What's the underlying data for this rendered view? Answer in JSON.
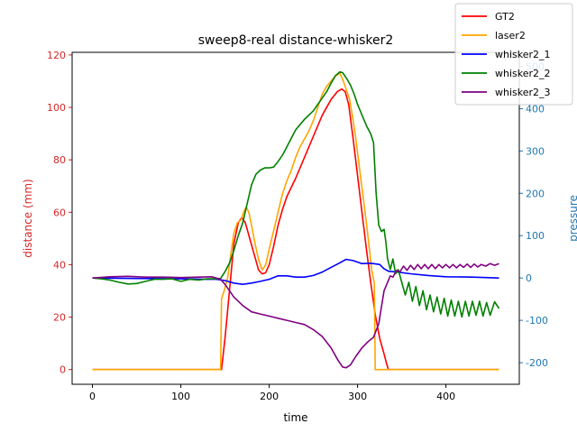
{
  "chart_data": {
    "type": "line",
    "title": "sweep8-real distance-whisker2",
    "xlabel": "time",
    "ylabel_left": "distance (mm)",
    "ylabel_right": "pressure",
    "xlim": [
      -23,
      483
    ],
    "ylim_left": [
      -5.6,
      121.0
    ],
    "ylim_right": [
      -251,
      533
    ],
    "xticks": [
      0,
      100,
      200,
      300,
      400
    ],
    "yticks_left": [
      0,
      20,
      40,
      60,
      80,
      100,
      120
    ],
    "yticks_right": [
      -200,
      -100,
      0,
      100,
      200,
      300,
      400,
      500
    ],
    "colors": {
      "left_axis": "#d62728",
      "right_axis": "#1f77b4"
    },
    "legend_position": "top-right",
    "series": [
      {
        "name": "GT2",
        "axis": "left",
        "color": "#ff0000",
        "points": [
          [
            0,
            0
          ],
          [
            146,
            0
          ],
          [
            150,
            12
          ],
          [
            155,
            30
          ],
          [
            160,
            48
          ],
          [
            165,
            56
          ],
          [
            169,
            58
          ],
          [
            173,
            56
          ],
          [
            178,
            50
          ],
          [
            183,
            44
          ],
          [
            188,
            38
          ],
          [
            192,
            36.5
          ],
          [
            196,
            37
          ],
          [
            200,
            40
          ],
          [
            205,
            47
          ],
          [
            210,
            55
          ],
          [
            215,
            61
          ],
          [
            220,
            66
          ],
          [
            230,
            73
          ],
          [
            240,
            81
          ],
          [
            250,
            89
          ],
          [
            260,
            97
          ],
          [
            270,
            103
          ],
          [
            277,
            106
          ],
          [
            282,
            107
          ],
          [
            286,
            106
          ],
          [
            290,
            101
          ],
          [
            295,
            88
          ],
          [
            300,
            74
          ],
          [
            305,
            60
          ],
          [
            310,
            46
          ],
          [
            315,
            33
          ],
          [
            320,
            21
          ],
          [
            325,
            12
          ],
          [
            330,
            6
          ],
          [
            333,
            2
          ],
          [
            335,
            0
          ],
          [
            460,
            0
          ]
        ]
      },
      {
        "name": "laser2",
        "axis": "left",
        "color": "#ffa500",
        "points": [
          [
            0,
            0
          ],
          [
            145,
            0
          ],
          [
            146,
            27
          ],
          [
            149,
            30
          ],
          [
            153,
            35
          ],
          [
            157,
            45
          ],
          [
            160,
            52
          ],
          [
            164,
            56
          ],
          [
            168,
            57
          ],
          [
            171,
            60
          ],
          [
            174,
            62
          ],
          [
            177,
            60
          ],
          [
            180,
            55
          ],
          [
            184,
            48
          ],
          [
            188,
            42
          ],
          [
            192,
            38
          ],
          [
            196,
            40
          ],
          [
            200,
            46
          ],
          [
            205,
            53
          ],
          [
            210,
            60
          ],
          [
            215,
            67
          ],
          [
            220,
            72
          ],
          [
            225,
            76
          ],
          [
            230,
            81
          ],
          [
            235,
            85
          ],
          [
            240,
            88
          ],
          [
            245,
            91
          ],
          [
            250,
            95
          ],
          [
            255,
            100
          ],
          [
            260,
            105
          ],
          [
            265,
            108
          ],
          [
            270,
            110
          ],
          [
            275,
            112
          ],
          [
            280,
            113
          ],
          [
            284,
            110
          ],
          [
            288,
            106
          ],
          [
            291,
            103
          ],
          [
            295,
            95
          ],
          [
            298,
            88
          ],
          [
            301,
            80
          ],
          [
            304,
            72
          ],
          [
            307,
            64
          ],
          [
            310,
            56
          ],
          [
            313,
            47
          ],
          [
            316,
            38
          ],
          [
            319,
            33
          ],
          [
            320,
            0
          ],
          [
            460,
            0
          ]
        ]
      },
      {
        "name": "whisker2_1",
        "axis": "right",
        "color": "#0000ff",
        "points": [
          [
            0,
            0
          ],
          [
            50,
            -1
          ],
          [
            100,
            -2
          ],
          [
            130,
            -3
          ],
          [
            140,
            -3
          ],
          [
            150,
            -6
          ],
          [
            160,
            -12
          ],
          [
            170,
            -15
          ],
          [
            180,
            -12
          ],
          [
            190,
            -8
          ],
          [
            200,
            -3
          ],
          [
            210,
            5
          ],
          [
            220,
            5
          ],
          [
            230,
            2
          ],
          [
            240,
            2
          ],
          [
            250,
            6
          ],
          [
            260,
            14
          ],
          [
            270,
            25
          ],
          [
            280,
            36
          ],
          [
            287,
            44
          ],
          [
            295,
            41
          ],
          [
            305,
            34
          ],
          [
            315,
            35
          ],
          [
            325,
            32
          ],
          [
            330,
            22
          ],
          [
            335,
            16
          ],
          [
            345,
            14
          ],
          [
            360,
            10
          ],
          [
            380,
            6
          ],
          [
            400,
            3
          ],
          [
            430,
            2
          ],
          [
            460,
            0
          ]
        ]
      },
      {
        "name": "whisker2_2",
        "axis": "right",
        "color": "#008000",
        "points": [
          [
            0,
            0
          ],
          [
            10,
            -2
          ],
          [
            20,
            -5
          ],
          [
            30,
            -10
          ],
          [
            40,
            -14
          ],
          [
            50,
            -13
          ],
          [
            60,
            -8
          ],
          [
            70,
            -3
          ],
          [
            80,
            -3
          ],
          [
            90,
            -2
          ],
          [
            100,
            -8
          ],
          [
            110,
            -3
          ],
          [
            120,
            -5
          ],
          [
            130,
            -2
          ],
          [
            140,
            -2
          ],
          [
            145,
            -1
          ],
          [
            150,
            15
          ],
          [
            155,
            35
          ],
          [
            160,
            65
          ],
          [
            165,
            100
          ],
          [
            170,
            130
          ],
          [
            175,
            175
          ],
          [
            180,
            220
          ],
          [
            185,
            245
          ],
          [
            190,
            255
          ],
          [
            195,
            260
          ],
          [
            200,
            260
          ],
          [
            205,
            262
          ],
          [
            210,
            275
          ],
          [
            215,
            290
          ],
          [
            220,
            310
          ],
          [
            225,
            330
          ],
          [
            230,
            350
          ],
          [
            240,
            375
          ],
          [
            250,
            395
          ],
          [
            255,
            410
          ],
          [
            260,
            425
          ],
          [
            265,
            440
          ],
          [
            270,
            460
          ],
          [
            275,
            478
          ],
          [
            280,
            487
          ],
          [
            283,
            485
          ],
          [
            288,
            470
          ],
          [
            292,
            455
          ],
          [
            296,
            435
          ],
          [
            300,
            410
          ],
          [
            305,
            385
          ],
          [
            310,
            360
          ],
          [
            315,
            340
          ],
          [
            318,
            320
          ],
          [
            321,
            200
          ],
          [
            324,
            125
          ],
          [
            327,
            110
          ],
          [
            330,
            115
          ],
          [
            332,
            85
          ],
          [
            334,
            45
          ],
          [
            337,
            20
          ],
          [
            340,
            45
          ],
          [
            343,
            10
          ],
          [
            346,
            20
          ],
          [
            350,
            -10
          ],
          [
            354,
            -40
          ],
          [
            358,
            -10
          ],
          [
            362,
            -55
          ],
          [
            366,
            -20
          ],
          [
            370,
            -65
          ],
          [
            374,
            -30
          ],
          [
            378,
            -75
          ],
          [
            382,
            -40
          ],
          [
            386,
            -80
          ],
          [
            390,
            -45
          ],
          [
            394,
            -85
          ],
          [
            398,
            -48
          ],
          [
            402,
            -90
          ],
          [
            406,
            -52
          ],
          [
            410,
            -90
          ],
          [
            414,
            -55
          ],
          [
            418,
            -92
          ],
          [
            422,
            -55
          ],
          [
            426,
            -90
          ],
          [
            430,
            -55
          ],
          [
            434,
            -88
          ],
          [
            438,
            -55
          ],
          [
            442,
            -90
          ],
          [
            446,
            -58
          ],
          [
            450,
            -88
          ],
          [
            455,
            -56
          ],
          [
            460,
            -72
          ]
        ]
      },
      {
        "name": "whisker2_3",
        "axis": "right",
        "color": "#800080",
        "points": [
          [
            0,
            0
          ],
          [
            20,
            3
          ],
          [
            40,
            4
          ],
          [
            60,
            2
          ],
          [
            80,
            2
          ],
          [
            100,
            1
          ],
          [
            120,
            2
          ],
          [
            135,
            3
          ],
          [
            145,
            -3
          ],
          [
            150,
            -15
          ],
          [
            160,
            -45
          ],
          [
            170,
            -65
          ],
          [
            180,
            -80
          ],
          [
            190,
            -85
          ],
          [
            200,
            -90
          ],
          [
            210,
            -95
          ],
          [
            220,
            -100
          ],
          [
            230,
            -105
          ],
          [
            240,
            -110
          ],
          [
            250,
            -122
          ],
          [
            260,
            -138
          ],
          [
            270,
            -165
          ],
          [
            278,
            -195
          ],
          [
            283,
            -210
          ],
          [
            287,
            -212
          ],
          [
            292,
            -205
          ],
          [
            298,
            -185
          ],
          [
            305,
            -165
          ],
          [
            312,
            -150
          ],
          [
            318,
            -140
          ],
          [
            324,
            -108
          ],
          [
            330,
            -30
          ],
          [
            334,
            -10
          ],
          [
            337,
            5
          ],
          [
            340,
            2
          ],
          [
            344,
            18
          ],
          [
            348,
            15
          ],
          [
            352,
            28
          ],
          [
            356,
            18
          ],
          [
            360,
            30
          ],
          [
            364,
            20
          ],
          [
            368,
            32
          ],
          [
            372,
            22
          ],
          [
            376,
            32
          ],
          [
            380,
            22
          ],
          [
            384,
            32
          ],
          [
            388,
            22
          ],
          [
            392,
            32
          ],
          [
            396,
            24
          ],
          [
            400,
            32
          ],
          [
            404,
            24
          ],
          [
            408,
            32
          ],
          [
            412,
            24
          ],
          [
            416,
            32
          ],
          [
            420,
            25
          ],
          [
            424,
            33
          ],
          [
            428,
            25
          ],
          [
            432,
            33
          ],
          [
            436,
            26
          ],
          [
            440,
            32
          ],
          [
            445,
            28
          ],
          [
            450,
            34
          ],
          [
            455,
            30
          ],
          [
            460,
            34
          ]
        ]
      }
    ]
  }
}
